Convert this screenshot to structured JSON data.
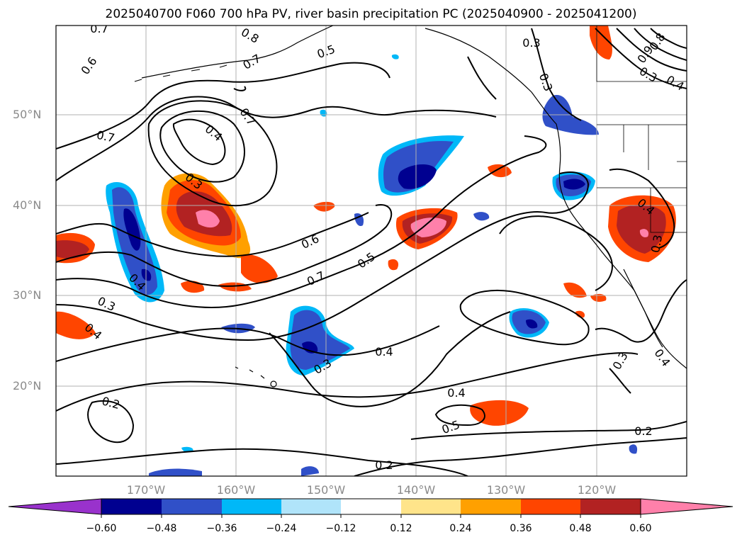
{
  "title": "2025040700 F060 700 hPa PV, river basin precipitation PC (2025040900 - 2025041200)",
  "map": {
    "lat_labels": [
      "50°N",
      "40°N",
      "30°N",
      "20°N"
    ],
    "lon_labels": [
      "170°W",
      "160°W",
      "150°W",
      "140°W",
      "130°W",
      "120°W"
    ],
    "contour_labels": [
      "0.7",
      "0.8",
      "0.6",
      "0.7",
      "0.5",
      "0.3",
      "0.3",
      "0.8",
      "0.9",
      "0.3",
      "0.4",
      "0.7",
      "0.7",
      "0.4",
      "0.3",
      "0.6",
      "0.5",
      "0.7",
      "0.4",
      "0.3",
      "0.4",
      "0.3",
      "0.4",
      "0.4",
      "0.2",
      "0.4",
      "0.5",
      "0.2",
      "0.2",
      "0.3",
      "0.4",
      "0.3"
    ]
  },
  "colorbar": {
    "ticks": [
      "−0.60",
      "−0.48",
      "−0.36",
      "−0.24",
      "−0.12",
      "0.12",
      "0.24",
      "0.36",
      "0.48",
      "0.60"
    ],
    "colors": [
      "#9932cc",
      "#000090",
      "#3050c8",
      "#00b8f8",
      "#b0e4fa",
      "#ffffff",
      "#ffe48a",
      "#ffa000",
      "#ff4500",
      "#b22222",
      "#ff80aa"
    ]
  }
}
